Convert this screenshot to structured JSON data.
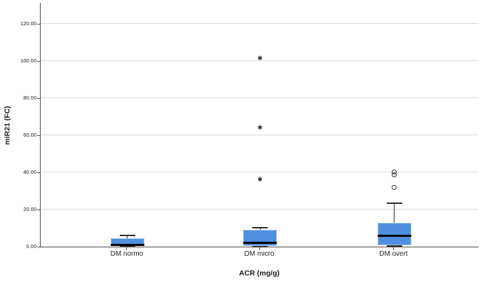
{
  "chart_data": {
    "type": "boxplot",
    "title": "",
    "xlabel": "ACR (mg/g)",
    "ylabel": "miR21 (FC)",
    "categories": [
      "DM normo",
      "DM micro",
      "DM overt"
    ],
    "ylim": [
      0,
      131.5
    ],
    "yticks": [
      0,
      20,
      40,
      60,
      80,
      100,
      120
    ],
    "ytick_labels": [
      "0.00",
      "20.00",
      "40.00",
      "60.00",
      "80.00",
      "100.00",
      "120.00"
    ],
    "grid": true,
    "legend": "none",
    "series": [
      {
        "category": "DM normo",
        "whisker_low": 0.2,
        "q1": 0.4,
        "median": 1.0,
        "q3": 4.4,
        "whisker_high": 6.0,
        "circle_outliers": [],
        "extreme_outliers": []
      },
      {
        "category": "DM micro",
        "whisker_low": 0.1,
        "q1": 0.5,
        "median": 2.0,
        "q3": 9.0,
        "whisker_high": 10.2,
        "circle_outliers": [],
        "extreme_outliers": [
          36.0,
          64.0,
          101.5
        ]
      },
      {
        "category": "DM overt",
        "whisker_low": 0.2,
        "q1": 0.9,
        "median": 5.7,
        "q3": 12.7,
        "whisker_high": 23.5,
        "circle_outliers": [
          32.0,
          38.5,
          40.2
        ],
        "extreme_outliers": []
      }
    ],
    "style": {
      "box_fill": "#4e8fe0",
      "box_border": "#a6c3e8",
      "median_color": "#000000",
      "whisker_color": "#2f2f2f",
      "outlier_color": "#2f2f2f",
      "grid_color": "#d9d9d9",
      "axis_color": "#4f4f4f"
    },
    "extreme_marker_glyph": "✱"
  }
}
